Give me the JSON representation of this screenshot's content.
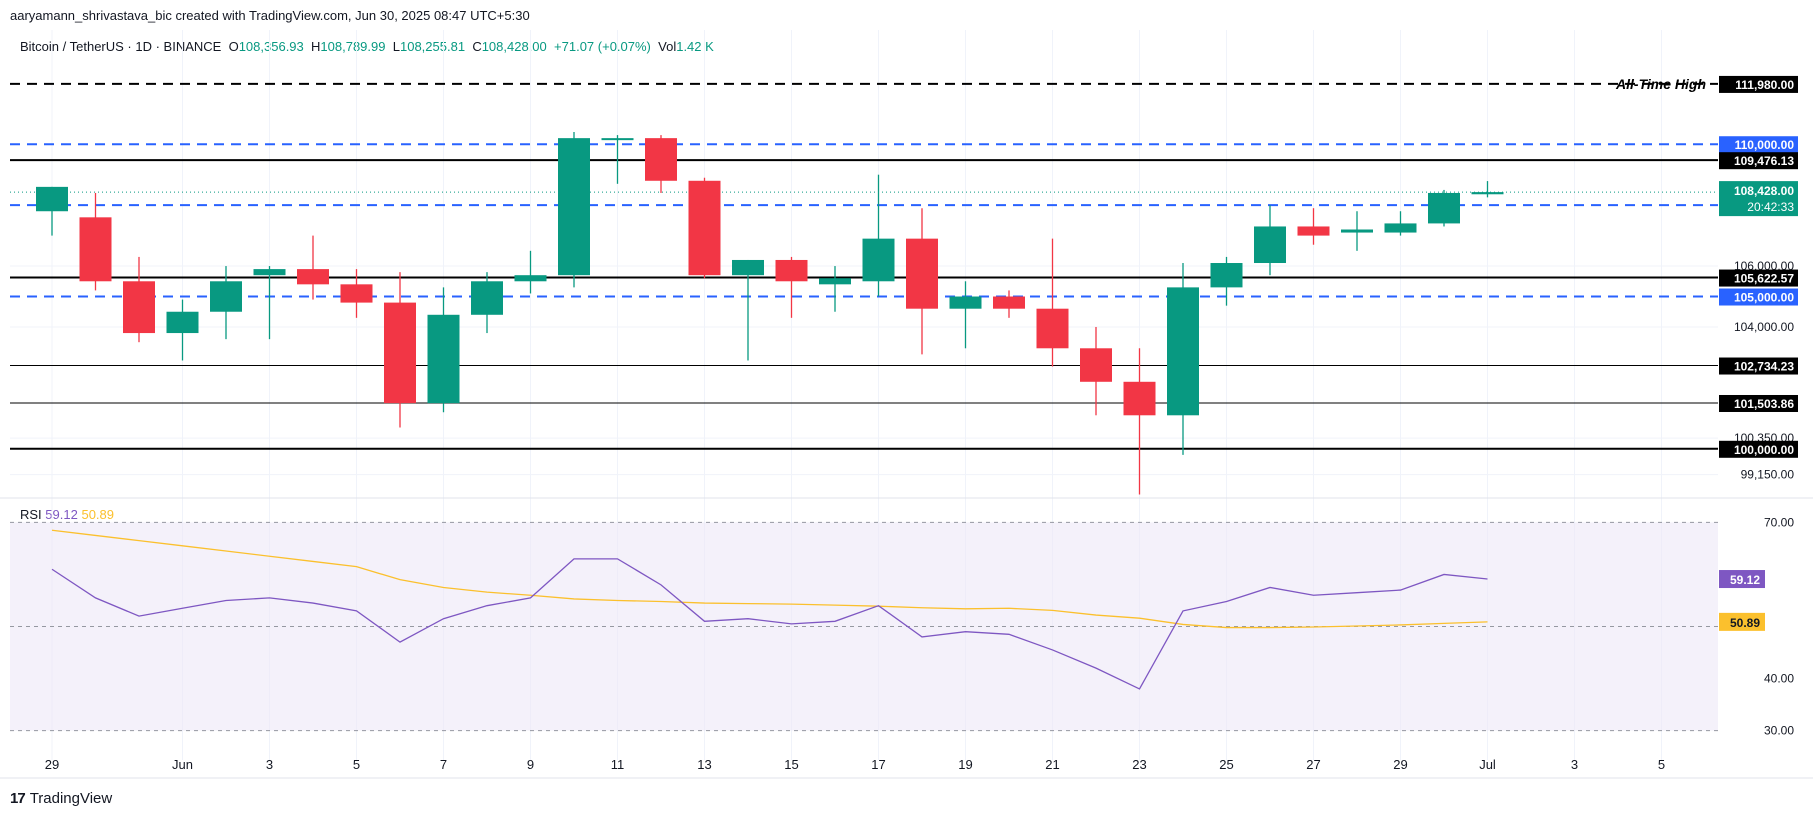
{
  "credit": "aaryamann_shrivastava_bic created with TradingView.com, Jun 30, 2025 08:47 UTC+5:30",
  "legend": {
    "symbol": "Bitcoin / TetherUS · 1D · BINANCE",
    "o_label": "O",
    "o_val": "108,356.93",
    "h_label": "H",
    "h_val": "108,789.99",
    "l_label": "L",
    "l_val": "108,255.81",
    "c_label": "C",
    "c_val": "108,428.00",
    "chg": "+71.07 (+0.07%)",
    "vol_label": "Vol",
    "vol_val": "1.42 K"
  },
  "rsi_legend": {
    "label": "RSI",
    "rsi": "59.12",
    "ma": "50.89"
  },
  "logo": {
    "mark": "17",
    "text": "TradingView"
  },
  "colors": {
    "up": "#089981",
    "down": "#f23645",
    "blue": "#2962ff",
    "rsi_line": "#7e57c2",
    "rsi_ma": "#fbc02d",
    "rsi_band": "#ede7f6"
  },
  "chart_data": {
    "type": "candlestick",
    "price_axis": {
      "ylim": [
        98450,
        112700
      ],
      "ticks": [
        "106,000.00",
        "104,000.00",
        "100,350.00",
        "99,150.00"
      ],
      "tick_values": [
        106000,
        104000,
        100350,
        99150
      ]
    },
    "x_axis": {
      "ticks": [
        {
          "label": "29",
          "i": 0
        },
        {
          "label": "Jun",
          "i": 3
        },
        {
          "label": "3",
          "i": 5
        },
        {
          "label": "5",
          "i": 7
        },
        {
          "label": "7",
          "i": 9
        },
        {
          "label": "9",
          "i": 11
        },
        {
          "label": "11",
          "i": 13
        },
        {
          "label": "13",
          "i": 15
        },
        {
          "label": "15",
          "i": 17
        },
        {
          "label": "17",
          "i": 19
        },
        {
          "label": "19",
          "i": 21
        },
        {
          "label": "21",
          "i": 23
        },
        {
          "label": "23",
          "i": 25
        },
        {
          "label": "25",
          "i": 27
        },
        {
          "label": "27",
          "i": 29
        },
        {
          "label": "29",
          "i": 31
        },
        {
          "label": "Jul",
          "i": 33
        },
        {
          "label": "3",
          "i": 35
        },
        {
          "label": "5",
          "i": 37
        }
      ]
    },
    "candles": [
      {
        "o": 107800,
        "h": 108600,
        "l": 107000,
        "c": 108600
      },
      {
        "o": 107600,
        "h": 108400,
        "l": 105200,
        "c": 105500
      },
      {
        "o": 105500,
        "h": 106300,
        "l": 103500,
        "c": 103800
      },
      {
        "o": 103800,
        "h": 104900,
        "l": 102900,
        "c": 104500
      },
      {
        "o": 104500,
        "h": 106000,
        "l": 103600,
        "c": 105500
      },
      {
        "o": 105700,
        "h": 106000,
        "l": 103600,
        "c": 105900
      },
      {
        "o": 105900,
        "h": 107000,
        "l": 104900,
        "c": 105400
      },
      {
        "o": 105400,
        "h": 105900,
        "l": 104300,
        "c": 104800
      },
      {
        "o": 104800,
        "h": 105800,
        "l": 100700,
        "c": 101500
      },
      {
        "o": 101500,
        "h": 105300,
        "l": 101200,
        "c": 104400
      },
      {
        "o": 104400,
        "h": 105800,
        "l": 103800,
        "c": 105500
      },
      {
        "o": 105500,
        "h": 106500,
        "l": 105100,
        "c": 105700
      },
      {
        "o": 105700,
        "h": 110400,
        "l": 105300,
        "c": 110200
      },
      {
        "o": 110200,
        "h": 110300,
        "l": 108700,
        "c": 110200
      },
      {
        "o": 110200,
        "h": 110300,
        "l": 108400,
        "c": 108800
      },
      {
        "o": 108800,
        "h": 108900,
        "l": 105600,
        "c": 105700
      },
      {
        "o": 105700,
        "h": 106200,
        "l": 102900,
        "c": 106200
      },
      {
        "o": 106200,
        "h": 106300,
        "l": 104300,
        "c": 105500
      },
      {
        "o": 105400,
        "h": 106000,
        "l": 104500,
        "c": 105600
      },
      {
        "o": 105500,
        "h": 109000,
        "l": 105000,
        "c": 106900
      },
      {
        "o": 106900,
        "h": 107900,
        "l": 103100,
        "c": 104600
      },
      {
        "o": 104600,
        "h": 105500,
        "l": 103300,
        "c": 105000
      },
      {
        "o": 105000,
        "h": 105200,
        "l": 104300,
        "c": 104600
      },
      {
        "o": 104600,
        "h": 106900,
        "l": 102700,
        "c": 103300
      },
      {
        "o": 103300,
        "h": 104000,
        "l": 101100,
        "c": 102200
      },
      {
        "o": 102200,
        "h": 103300,
        "l": 98500,
        "c": 101100
      },
      {
        "o": 101100,
        "h": 106100,
        "l": 99800,
        "c": 105300
      },
      {
        "o": 105300,
        "h": 106300,
        "l": 104700,
        "c": 106100
      },
      {
        "o": 106100,
        "h": 108000,
        "l": 105700,
        "c": 107300
      },
      {
        "o": 107300,
        "h": 107900,
        "l": 106700,
        "c": 107000
      },
      {
        "o": 107100,
        "h": 107800,
        "l": 106500,
        "c": 107200
      },
      {
        "o": 107100,
        "h": 107800,
        "l": 107000,
        "c": 107400
      },
      {
        "o": 107400,
        "h": 108500,
        "l": 107300,
        "c": 108400
      },
      {
        "o": 108356.93,
        "h": 108789.99,
        "l": 108255.81,
        "c": 108428.0
      }
    ],
    "levels": [
      {
        "value": 111980,
        "label": "111,980.00",
        "style": "dashed",
        "color": "#000000",
        "note": "All-Time High"
      },
      {
        "value": 110000,
        "label": "110,000.00",
        "style": "dashed",
        "color": "#2962ff"
      },
      {
        "value": 109476.13,
        "label": "109,476.13",
        "style": "solid",
        "color": "#000000"
      },
      {
        "value": 108000,
        "label": "108,000.00",
        "style": "dashed",
        "color": "#2962ff"
      },
      {
        "value": 105622.57,
        "label": "105,622.57",
        "style": "solid",
        "color": "#000000"
      },
      {
        "value": 105000,
        "label": "105,000.00",
        "style": "dashed",
        "color": "#2962ff"
      },
      {
        "value": 102734.23,
        "label": "102,734.23",
        "style": "solid-thin",
        "color": "#000000"
      },
      {
        "value": 101503.86,
        "label": "101,503.86",
        "style": "solid-thin",
        "color": "#000000"
      },
      {
        "value": 100000,
        "label": "100,000.00",
        "style": "solid",
        "color": "#000000"
      }
    ],
    "last_price": {
      "value": 108428,
      "label": "108,428.00",
      "countdown": "20:42:33"
    },
    "rsi": {
      "ylim": [
        28,
        72
      ],
      "ticks": [
        "70.00",
        "40.00",
        "30.00"
      ],
      "tick_values": [
        70,
        40,
        30
      ],
      "band": [
        30,
        70
      ],
      "mid": 50,
      "rsi_values": [
        61,
        55.5,
        52,
        53.5,
        55,
        55.5,
        54.5,
        53,
        47,
        51.5,
        54,
        55.5,
        63,
        63,
        58,
        51,
        51.5,
        50.5,
        51,
        54,
        48,
        49,
        48.5,
        45.5,
        42,
        38,
        53,
        54.8,
        57.5,
        56,
        56.5,
        57,
        60,
        59.12
      ],
      "ma_values": [
        68.5,
        67.5,
        66.5,
        65.5,
        64.5,
        63.5,
        62.5,
        61.5,
        59,
        57.5,
        56.6,
        56,
        55.3,
        55,
        54.8,
        54.5,
        54.4,
        54.3,
        54.1,
        53.9,
        53.6,
        53.4,
        53.5,
        53.1,
        52.2,
        51.6,
        50.4,
        49.8,
        49.8,
        49.9,
        50.1,
        50.3,
        50.6,
        50.89
      ]
    }
  }
}
